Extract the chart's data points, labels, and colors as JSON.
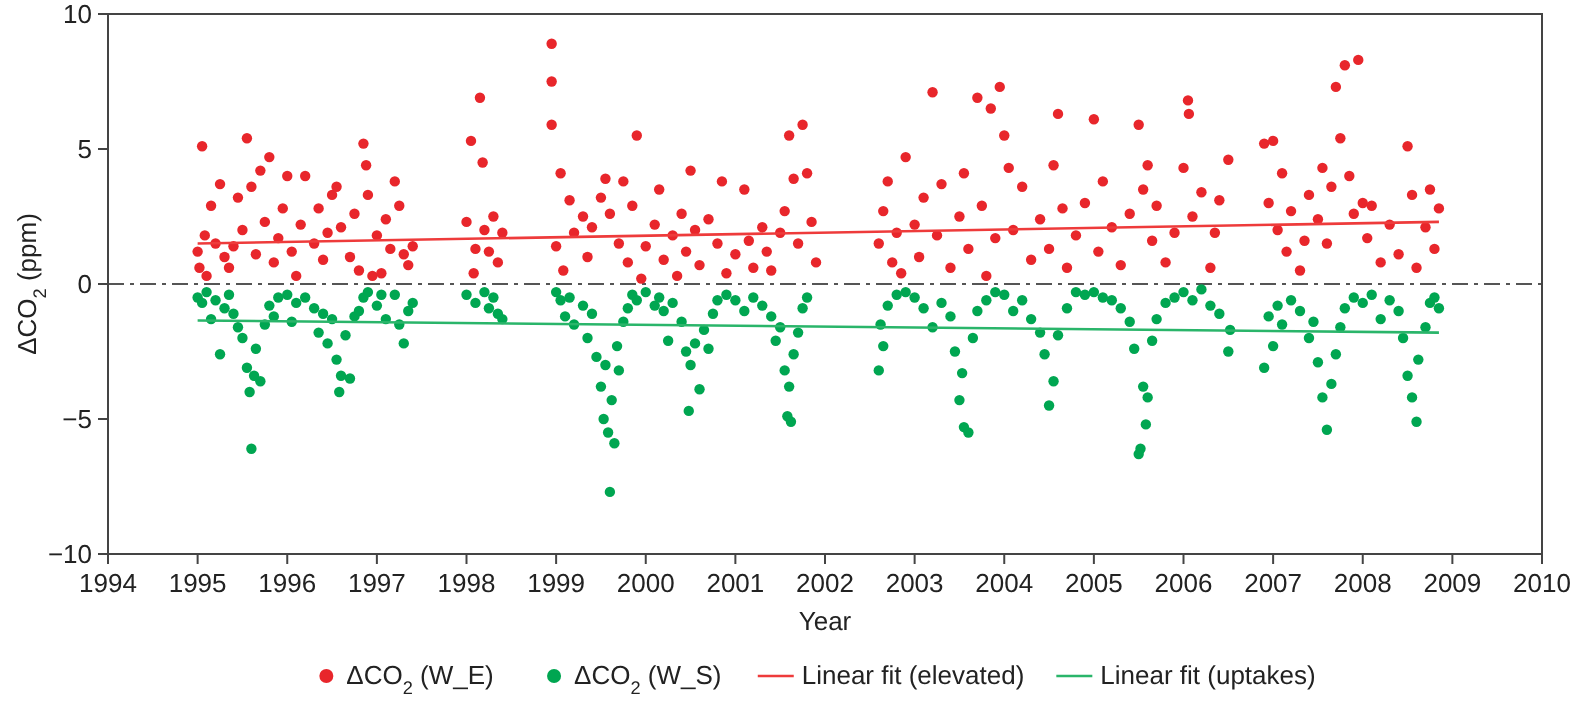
{
  "chart_data": {
    "type": "scatter",
    "xlabel": "Year",
    "ylabel": "ΔCO$_{2}$ (ppm)",
    "xlim": [
      1994,
      2010
    ],
    "xticks": [
      1994,
      1995,
      1996,
      1997,
      1998,
      1999,
      2000,
      2001,
      2002,
      2003,
      2004,
      2005,
      2006,
      2007,
      2008,
      2009,
      2010
    ],
    "ylim": [
      -10,
      10
    ],
    "yticks": [
      -10,
      -5,
      0,
      5,
      10
    ],
    "legend": "bottom",
    "grid": false,
    "ref_lines": [
      {
        "axis": "y",
        "value": 0,
        "color": "#555555",
        "line_style": "dashed"
      }
    ],
    "series": [
      {
        "name": "ΔCO$_{2}$ (W_E)",
        "marker": "circle",
        "color": "#e8262b",
        "x": [
          1995.0,
          1995.02,
          1995.05,
          1995.08,
          1995.1,
          1995.15,
          1995.2,
          1995.25,
          1995.3,
          1995.35,
          1995.4,
          1995.45,
          1995.5,
          1995.55,
          1995.6,
          1995.65,
          1995.7,
          1995.75,
          1995.8,
          1995.85,
          1995.9,
          1995.95,
          1996.0,
          1996.05,
          1996.1,
          1996.15,
          1996.2,
          1996.3,
          1996.35,
          1996.4,
          1996.45,
          1996.5,
          1996.55,
          1996.6,
          1996.7,
          1996.75,
          1996.8,
          1996.85,
          1996.88,
          1996.9,
          1996.95,
          1997.0,
          1997.05,
          1997.1,
          1997.15,
          1997.2,
          1997.25,
          1997.3,
          1997.35,
          1997.4,
          1998.0,
          1998.05,
          1998.08,
          1998.1,
          1998.15,
          1998.18,
          1998.2,
          1998.25,
          1998.3,
          1998.35,
          1998.4,
          1998.95,
          1998.95,
          1998.95,
          1999.0,
          1999.05,
          1999.08,
          1999.15,
          1999.2,
          1999.3,
          1999.35,
          1999.4,
          1999.5,
          1999.55,
          1999.6,
          1999.7,
          1999.75,
          1999.8,
          1999.85,
          1999.9,
          1999.95,
          2000.0,
          2000.1,
          2000.15,
          2000.2,
          2000.3,
          2000.35,
          2000.4,
          2000.45,
          2000.5,
          2000.55,
          2000.6,
          2000.7,
          2000.8,
          2000.85,
          2000.9,
          2001.0,
          2001.1,
          2001.15,
          2001.2,
          2001.3,
          2001.35,
          2001.4,
          2001.5,
          2001.55,
          2001.6,
          2001.65,
          2001.7,
          2001.75,
          2001.8,
          2001.85,
          2001.9,
          2002.6,
          2002.65,
          2002.7,
          2002.75,
          2002.8,
          2002.85,
          2002.9,
          2003.0,
          2003.05,
          2003.1,
          2003.2,
          2003.25,
          2003.3,
          2003.4,
          2003.5,
          2003.55,
          2003.6,
          2003.7,
          2003.75,
          2003.8,
          2003.85,
          2003.9,
          2003.95,
          2004.0,
          2004.05,
          2004.1,
          2004.2,
          2004.3,
          2004.4,
          2004.5,
          2004.55,
          2004.6,
          2004.65,
          2004.7,
          2004.8,
          2004.9,
          2005.0,
          2005.05,
          2005.1,
          2005.2,
          2005.3,
          2005.4,
          2005.5,
          2005.55,
          2005.6,
          2005.65,
          2005.7,
          2005.8,
          2005.9,
          2006.0,
          2006.05,
          2006.06,
          2006.1,
          2006.2,
          2006.3,
          2006.35,
          2006.4,
          2006.5,
          2006.9,
          2006.95,
          2007.0,
          2007.05,
          2007.1,
          2007.15,
          2007.2,
          2007.3,
          2007.35,
          2007.4,
          2007.5,
          2007.55,
          2007.6,
          2007.65,
          2007.7,
          2007.75,
          2007.8,
          2007.85,
          2007.9,
          2007.95,
          2008.0,
          2008.05,
          2008.1,
          2008.2,
          2008.3,
          2008.4,
          2008.5,
          2008.55,
          2008.6,
          2008.7,
          2008.75,
          2008.8,
          2008.85
        ],
        "values": [
          1.2,
          0.6,
          5.1,
          1.8,
          0.3,
          2.9,
          1.5,
          3.7,
          1.0,
          0.6,
          1.4,
          3.2,
          2.0,
          5.4,
          3.6,
          1.1,
          4.2,
          2.3,
          4.7,
          0.8,
          1.7,
          2.8,
          4.0,
          1.2,
          0.3,
          2.2,
          4.0,
          1.5,
          2.8,
          0.9,
          1.9,
          3.3,
          3.6,
          2.1,
          1.0,
          2.6,
          0.5,
          5.2,
          4.4,
          3.3,
          0.3,
          1.8,
          0.4,
          2.4,
          1.3,
          3.8,
          2.9,
          1.1,
          0.7,
          1.4,
          2.3,
          5.3,
          0.4,
          1.3,
          6.9,
          4.5,
          2.0,
          1.2,
          2.5,
          0.8,
          1.9,
          8.9,
          7.5,
          5.9,
          1.4,
          4.1,
          0.5,
          3.1,
          1.9,
          2.5,
          1.0,
          2.1,
          3.2,
          3.9,
          2.6,
          1.5,
          3.8,
          0.8,
          2.9,
          5.5,
          0.2,
          1.4,
          2.2,
          3.5,
          0.9,
          1.8,
          0.3,
          2.6,
          1.2,
          4.2,
          2.0,
          0.7,
          2.4,
          1.5,
          3.8,
          0.4,
          1.1,
          3.5,
          1.6,
          0.6,
          2.1,
          1.2,
          0.5,
          1.9,
          2.7,
          5.5,
          3.9,
          1.5,
          5.9,
          4.1,
          2.3,
          0.8,
          1.5,
          2.7,
          3.8,
          0.8,
          1.9,
          0.4,
          4.7,
          2.2,
          1.0,
          3.2,
          7.1,
          1.8,
          3.7,
          0.6,
          2.5,
          4.1,
          1.3,
          6.9,
          2.9,
          0.3,
          6.5,
          1.7,
          7.3,
          5.5,
          4.3,
          2.0,
          3.6,
          0.9,
          2.4,
          1.3,
          4.4,
          6.3,
          2.8,
          0.6,
          1.8,
          3.0,
          6.1,
          1.2,
          3.8,
          2.1,
          0.7,
          2.6,
          5.9,
          3.5,
          4.4,
          1.6,
          2.9,
          0.8,
          1.9,
          4.3,
          6.8,
          6.3,
          2.5,
          3.4,
          0.6,
          1.9,
          3.1,
          4.6,
          5.2,
          3.0,
          5.3,
          2.0,
          4.1,
          1.2,
          2.7,
          0.5,
          1.6,
          3.3,
          2.4,
          4.3,
          1.5,
          3.6,
          7.3,
          5.4,
          8.1,
          4.0,
          2.6,
          8.3,
          3.0,
          1.7,
          2.9,
          0.8,
          2.2,
          1.1,
          5.1,
          3.3,
          0.6,
          2.1,
          3.5,
          1.3,
          2.8
        ]
      },
      {
        "name": "ΔCO$_{2}$ (W_S)",
        "marker": "circle",
        "color": "#00a651",
        "x": [
          1995.0,
          1995.05,
          1995.1,
          1995.15,
          1995.2,
          1995.25,
          1995.3,
          1995.35,
          1995.4,
          1995.45,
          1995.5,
          1995.55,
          1995.58,
          1995.6,
          1995.63,
          1995.65,
          1995.7,
          1995.75,
          1995.8,
          1995.85,
          1995.9,
          1996.0,
          1996.05,
          1996.1,
          1996.2,
          1996.3,
          1996.35,
          1996.4,
          1996.45,
          1996.5,
          1996.55,
          1996.58,
          1996.6,
          1996.65,
          1996.7,
          1996.75,
          1996.8,
          1996.85,
          1996.9,
          1997.0,
          1997.05,
          1997.1,
          1997.2,
          1997.25,
          1997.3,
          1997.35,
          1997.4,
          1998.0,
          1998.1,
          1998.2,
          1998.25,
          1998.3,
          1998.35,
          1998.4,
          1999.0,
          1999.05,
          1999.1,
          1999.15,
          1999.2,
          1999.3,
          1999.35,
          1999.4,
          1999.45,
          1999.5,
          1999.53,
          1999.55,
          1999.58,
          1999.6,
          1999.62,
          1999.65,
          1999.68,
          1999.7,
          1999.75,
          1999.8,
          1999.85,
          1999.9,
          2000.0,
          2000.1,
          2000.15,
          2000.2,
          2000.25,
          2000.3,
          2000.4,
          2000.45,
          2000.48,
          2000.5,
          2000.55,
          2000.6,
          2000.65,
          2000.7,
          2000.75,
          2000.8,
          2000.9,
          2001.0,
          2001.1,
          2001.2,
          2001.3,
          2001.4,
          2001.45,
          2001.5,
          2001.55,
          2001.58,
          2001.6,
          2001.62,
          2001.65,
          2001.7,
          2001.75,
          2001.8,
          2002.6,
          2002.62,
          2002.65,
          2002.7,
          2002.8,
          2002.9,
          2003.0,
          2003.1,
          2003.2,
          2003.3,
          2003.4,
          2003.45,
          2003.5,
          2003.53,
          2003.55,
          2003.6,
          2003.65,
          2003.7,
          2003.8,
          2003.9,
          2004.0,
          2004.1,
          2004.2,
          2004.3,
          2004.4,
          2004.45,
          2004.5,
          2004.55,
          2004.6,
          2004.7,
          2004.8,
          2004.9,
          2005.0,
          2005.1,
          2005.2,
          2005.3,
          2005.4,
          2005.45,
          2005.5,
          2005.52,
          2005.55,
          2005.58,
          2005.6,
          2005.65,
          2005.7,
          2005.8,
          2005.9,
          2006.0,
          2006.1,
          2006.2,
          2006.3,
          2006.4,
          2006.5,
          2006.52,
          2006.9,
          2006.95,
          2007.0,
          2007.05,
          2007.1,
          2007.2,
          2007.3,
          2007.4,
          2007.45,
          2007.5,
          2007.55,
          2007.6,
          2007.65,
          2007.7,
          2007.75,
          2007.8,
          2007.9,
          2008.0,
          2008.1,
          2008.2,
          2008.3,
          2008.4,
          2008.45,
          2008.5,
          2008.55,
          2008.6,
          2008.62,
          2008.7,
          2008.75,
          2008.8,
          2008.85
        ],
        "values": [
          -0.5,
          -0.7,
          -0.3,
          -1.3,
          -0.6,
          -2.6,
          -0.9,
          -0.4,
          -1.1,
          -1.6,
          -2.0,
          -3.1,
          -4.0,
          -6.1,
          -3.4,
          -2.4,
          -3.6,
          -1.5,
          -0.8,
          -1.2,
          -0.5,
          -0.4,
          -1.4,
          -0.7,
          -0.5,
          -0.9,
          -1.8,
          -1.1,
          -2.2,
          -1.3,
          -2.8,
          -4.0,
          -3.4,
          -1.9,
          -3.5,
          -1.2,
          -1.0,
          -0.5,
          -0.3,
          -0.8,
          -0.4,
          -1.3,
          -0.4,
          -1.5,
          -2.2,
          -1.0,
          -0.7,
          -0.4,
          -0.7,
          -0.3,
          -0.9,
          -0.5,
          -1.1,
          -1.3,
          -0.3,
          -0.6,
          -1.2,
          -0.5,
          -1.5,
          -0.8,
          -2.0,
          -1.1,
          -2.7,
          -3.8,
          -5.0,
          -3.0,
          -5.5,
          -7.7,
          -4.3,
          -5.9,
          -2.3,
          -3.2,
          -1.4,
          -0.9,
          -0.4,
          -0.6,
          -0.3,
          -0.8,
          -0.5,
          -1.0,
          -2.1,
          -0.7,
          -1.4,
          -2.5,
          -4.7,
          -3.0,
          -2.2,
          -3.9,
          -1.7,
          -2.4,
          -1.1,
          -0.6,
          -0.4,
          -0.6,
          -1.0,
          -0.5,
          -0.8,
          -1.2,
          -2.1,
          -1.6,
          -3.2,
          -4.9,
          -3.8,
          -5.1,
          -2.6,
          -1.8,
          -0.9,
          -0.5,
          -3.2,
          -1.5,
          -2.3,
          -0.8,
          -0.4,
          -0.3,
          -0.5,
          -0.9,
          -1.6,
          -0.7,
          -1.2,
          -2.5,
          -4.3,
          -3.3,
          -5.3,
          -5.5,
          -2.0,
          -1.0,
          -0.6,
          -0.3,
          -0.4,
          -1.0,
          -0.6,
          -1.3,
          -1.8,
          -2.6,
          -4.5,
          -3.6,
          -1.9,
          -0.9,
          -0.3,
          -0.4,
          -0.3,
          -0.5,
          -0.6,
          -0.9,
          -1.4,
          -2.4,
          -6.3,
          -6.1,
          -3.8,
          -5.2,
          -4.2,
          -2.1,
          -1.3,
          -0.7,
          -0.5,
          -0.3,
          -0.6,
          -0.2,
          -0.8,
          -1.1,
          -2.5,
          -1.7,
          -3.1,
          -1.2,
          -2.3,
          -0.8,
          -1.5,
          -0.6,
          -1.0,
          -2.0,
          -1.4,
          -2.9,
          -4.2,
          -5.4,
          -3.7,
          -2.6,
          -1.6,
          -0.9,
          -0.5,
          -0.7,
          -0.4,
          -1.3,
          -0.6,
          -1.0,
          -2.0,
          -3.4,
          -4.2,
          -5.1,
          -2.8,
          -1.6,
          -0.7,
          -0.5,
          -0.9
        ]
      },
      {
        "name": "Linear fit (elevated)",
        "type": "line",
        "marker": "none",
        "color": "#ee3b3b",
        "x": [
          1995.0,
          2008.85
        ],
        "values": [
          1.5,
          2.3
        ]
      },
      {
        "name": "Linear fit (uptakes)",
        "type": "line",
        "marker": "none",
        "color": "#2ab56a",
        "x": [
          1995.0,
          2008.85
        ],
        "values": [
          -1.35,
          -1.8
        ]
      }
    ]
  }
}
